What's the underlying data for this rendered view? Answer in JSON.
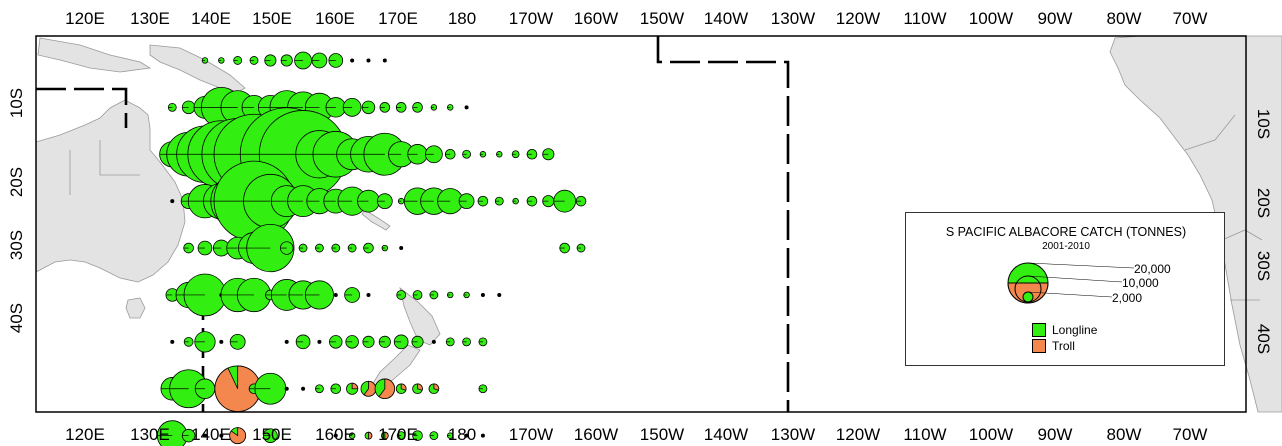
{
  "top_lon_labels": [
    "120E",
    "130E",
    "140E",
    "150E",
    "160E",
    "170E",
    "180",
    "170W",
    "160W",
    "150W",
    "140W",
    "130W",
    "120W",
    "110W",
    "100W",
    "90W",
    "80W",
    "70W"
  ],
  "bottom_lon_labels": [
    "120E",
    "130E",
    "140E",
    "150E",
    "160E",
    "170E",
    "180",
    "170W",
    "160W",
    "150W",
    "140W",
    "130W",
    "120W",
    "110W",
    "100W",
    "90W",
    "80W",
    "70W"
  ],
  "left_lat_labels": [
    "10S",
    "20S",
    "30S",
    "40S"
  ],
  "right_lat_labels": [
    "10S",
    "20S",
    "30S",
    "40S"
  ],
  "legend": {
    "title": "S PACIFIC ALBACORE CATCH (TONNES)",
    "subtitle": "2001-2010",
    "amounts": [
      "20,000",
      "10,000",
      "2,000"
    ],
    "series": [
      {
        "label": "Longline",
        "color": "#33ee11"
      },
      {
        "label": "Troll",
        "color": "#f4874e"
      }
    ]
  },
  "colors": {
    "longline": "#33ee11",
    "troll": "#f4874e",
    "land": "#e3e3e3"
  },
  "catch_cells": [
    {
      "lat": -2.5,
      "lon": 162.5,
      "t": 100
    },
    {
      "lat": -2.5,
      "lon": 167.5,
      "t": 100
    },
    {
      "lat": -2.5,
      "lon": 172.5,
      "t": 200
    },
    {
      "lat": -2.5,
      "lon": 177.5,
      "t": 200
    },
    {
      "lat": -2.5,
      "lon": 182.5,
      "t": 400
    },
    {
      "lat": -2.5,
      "lon": 187.5,
      "t": 400
    },
    {
      "lat": -2.5,
      "lon": 192.5,
      "t": 900
    },
    {
      "lat": -2.5,
      "lon": 197.5,
      "t": 700
    },
    {
      "lat": -2.5,
      "lon": 202.5,
      "t": 600
    },
    {
      "lat": -2.5,
      "lon": 207.5,
      "t": 50
    },
    {
      "lat": -2.5,
      "lon": 212.5,
      "t": 50
    },
    {
      "lat": -2.5,
      "lon": 217.5,
      "t": 50
    },
    {
      "lat": -7.5,
      "lon": 152.5,
      "t": 200
    },
    {
      "lat": -7.5,
      "lon": 157.5,
      "t": 500
    },
    {
      "lat": -7.5,
      "lon": 162.5,
      "t": 1500
    },
    {
      "lat": -7.5,
      "lon": 167.5,
      "t": 5000
    },
    {
      "lat": -7.5,
      "lon": 172.5,
      "t": 3500
    },
    {
      "lat": -7.5,
      "lon": 177.5,
      "t": 1800
    },
    {
      "lat": -7.5,
      "lon": 182.5,
      "t": 1800
    },
    {
      "lat": -7.5,
      "lon": 187.5,
      "t": 3500
    },
    {
      "lat": -7.5,
      "lon": 192.5,
      "t": 3000
    },
    {
      "lat": -7.5,
      "lon": 197.5,
      "t": 2500
    },
    {
      "lat": -7.5,
      "lon": 202.5,
      "t": 1200
    },
    {
      "lat": -7.5,
      "lon": 207.5,
      "t": 1000
    },
    {
      "lat": -7.5,
      "lon": 212.5,
      "t": 500
    },
    {
      "lat": -7.5,
      "lon": 217.5,
      "t": 300
    },
    {
      "lat": -7.5,
      "lon": 222.5,
      "t": 300
    },
    {
      "lat": -7.5,
      "lon": 227.5,
      "t": 300
    },
    {
      "lat": -7.5,
      "lon": 232.5,
      "t": 100
    },
    {
      "lat": -7.5,
      "lon": 237.5,
      "t": 100
    },
    {
      "lat": -7.5,
      "lon": 242.5,
      "t": 50
    },
    {
      "lat": -12.5,
      "lon": 152.5,
      "t": 2000
    },
    {
      "lat": -12.5,
      "lon": 157.5,
      "t": 6000
    },
    {
      "lat": -12.5,
      "lon": 162.5,
      "t": 10000
    },
    {
      "lat": -12.5,
      "lon": 167.5,
      "t": 14000
    },
    {
      "lat": -12.5,
      "lon": 172.5,
      "t": 16000
    },
    {
      "lat": -12.5,
      "lon": 177.5,
      "t": 20000
    },
    {
      "lat": -12.5,
      "lon": 182.5,
      "t": 8000
    },
    {
      "lat": -12.5,
      "lon": 187.5,
      "t": 27000
    },
    {
      "lat": -12.5,
      "lon": 192.5,
      "t": 24000
    },
    {
      "lat": -12.5,
      "lon": 197.5,
      "t": 7000
    },
    {
      "lat": -12.5,
      "lon": 202.5,
      "t": 6500
    },
    {
      "lat": -12.5,
      "lon": 207.5,
      "t": 3000
    },
    {
      "lat": -12.5,
      "lon": 212.5,
      "t": 4000
    },
    {
      "lat": -12.5,
      "lon": 217.5,
      "t": 5500
    },
    {
      "lat": -12.5,
      "lon": 222.5,
      "t": 2000
    },
    {
      "lat": -12.5,
      "lon": 227.5,
      "t": 1200
    },
    {
      "lat": -12.5,
      "lon": 232.5,
      "t": 900
    },
    {
      "lat": -12.5,
      "lon": 237.5,
      "t": 300
    },
    {
      "lat": -12.5,
      "lon": 242.5,
      "t": 200
    },
    {
      "lat": -12.5,
      "lon": 247.5,
      "t": 100
    },
    {
      "lat": -12.5,
      "lon": 252.5,
      "t": 100
    },
    {
      "lat": -12.5,
      "lon": 257.5,
      "t": 150
    },
    {
      "lat": -12.5,
      "lon": 262.5,
      "t": 300
    },
    {
      "lat": -12.5,
      "lon": 267.5,
      "t": 400
    },
    {
      "lat": -17.5,
      "lon": 152.5,
      "t": 50
    },
    {
      "lat": -17.5,
      "lon": 157.5,
      "t": 700
    },
    {
      "lat": -17.5,
      "lon": 162.5,
      "t": 3500
    },
    {
      "lat": -17.5,
      "lon": 167.5,
      "t": 4000
    },
    {
      "lat": -17.5,
      "lon": 172.5,
      "t": 9000
    },
    {
      "lat": -17.5,
      "lon": 177.5,
      "t": 20000
    },
    {
      "lat": -17.5,
      "lon": 182.5,
      "t": 9000
    },
    {
      "lat": -17.5,
      "lon": 187.5,
      "t": 3000
    },
    {
      "lat": -17.5,
      "lon": 192.5,
      "t": 3000
    },
    {
      "lat": -17.5,
      "lon": 197.5,
      "t": 2000
    },
    {
      "lat": -17.5,
      "lon": 202.5,
      "t": 1800
    },
    {
      "lat": -17.5,
      "lon": 207.5,
      "t": 2500
    },
    {
      "lat": -17.5,
      "lon": 212.5,
      "t": 1500
    },
    {
      "lat": -17.5,
      "lon": 217.5,
      "t": 700
    },
    {
      "lat": -17.5,
      "lon": 222.5,
      "t": 100
    },
    {
      "lat": -17.5,
      "lon": 227.5,
      "t": 2200
    },
    {
      "lat": -17.5,
      "lon": 232.5,
      "t": 2200
    },
    {
      "lat": -17.5,
      "lon": 237.5,
      "t": 2000
    },
    {
      "lat": -17.5,
      "lon": 242.5,
      "t": 700
    },
    {
      "lat": -17.5,
      "lon": 247.5,
      "t": 300
    },
    {
      "lat": -17.5,
      "lon": 252.5,
      "t": 200
    },
    {
      "lat": -17.5,
      "lon": 257.5,
      "t": 100
    },
    {
      "lat": -17.5,
      "lon": 262.5,
      "t": 300
    },
    {
      "lat": -17.5,
      "lon": 267.5,
      "t": 400
    },
    {
      "lat": -17.5,
      "lon": 272.5,
      "t": 1500
    },
    {
      "lat": -17.5,
      "lon": 277.5,
      "t": 300
    },
    {
      "lat": -22.5,
      "lon": 157.5,
      "t": 300
    },
    {
      "lat": -22.5,
      "lon": 162.5,
      "t": 600
    },
    {
      "lat": -22.5,
      "lon": 167.5,
      "t": 800
    },
    {
      "lat": -22.5,
      "lon": 172.5,
      "t": 1500
    },
    {
      "lat": -22.5,
      "lon": 177.5,
      "t": 3000
    },
    {
      "lat": -22.5,
      "lon": 182.5,
      "t": 7000
    },
    {
      "lat": -22.5,
      "lon": 187.5,
      "t": 500
    },
    {
      "lat": -22.5,
      "lon": 192.5,
      "t": 200
    },
    {
      "lat": -22.5,
      "lon": 197.5,
      "t": 200
    },
    {
      "lat": -22.5,
      "lon": 202.5,
      "t": 200
    },
    {
      "lat": -22.5,
      "lon": 207.5,
      "t": 200
    },
    {
      "lat": -22.5,
      "lon": 212.5,
      "t": 300
    },
    {
      "lat": -22.5,
      "lon": 217.5,
      "t": 100
    },
    {
      "lat": -22.5,
      "lon": 222.5,
      "t": 50
    },
    {
      "lat": -22.5,
      "lon": 272.5,
      "t": 300
    },
    {
      "lat": -22.5,
      "lon": 277.5,
      "t": 200
    },
    {
      "lat": -27.5,
      "lon": 152.5,
      "t": 500
    },
    {
      "lat": -27.5,
      "lon": 157.5,
      "t": 2000
    },
    {
      "lat": -27.5,
      "lon": 162.5,
      "t": 5500
    },
    {
      "lat": -27.5,
      "lon": 167.5,
      "t": 50
    },
    {
      "lat": -27.5,
      "lon": 172.5,
      "t": 3500
    },
    {
      "lat": -27.5,
      "lon": 177.5,
      "t": 3500
    },
    {
      "lat": -27.5,
      "lon": 182.5,
      "t": 300
    },
    {
      "lat": -27.5,
      "lon": 187.5,
      "t": 3000
    },
    {
      "lat": -27.5,
      "lon": 192.5,
      "t": 2500
    },
    {
      "lat": -27.5,
      "lon": 197.5,
      "t": 2500
    },
    {
      "lat": -27.5,
      "lon": 202.5,
      "t": 50
    },
    {
      "lat": -27.5,
      "lon": 207.5,
      "t": 700
    },
    {
      "lat": -27.5,
      "lon": 212.5,
      "t": 50
    },
    {
      "lat": -27.5,
      "lon": 222.5,
      "t": 250
    },
    {
      "lat": -27.5,
      "lon": 227.5,
      "t": 250
    },
    {
      "lat": -27.5,
      "lon": 232.5,
      "t": 200
    },
    {
      "lat": -27.5,
      "lon": 237.5,
      "t": 100
    },
    {
      "lat": -27.5,
      "lon": 242.5,
      "t": 100
    },
    {
      "lat": -27.5,
      "lon": 247.5,
      "t": 50
    },
    {
      "lat": -27.5,
      "lon": 252.5,
      "t": 50
    },
    {
      "lat": -32.5,
      "lon": 152.5,
      "t": 50
    },
    {
      "lat": -32.5,
      "lon": 157.5,
      "t": 250
    },
    {
      "lat": -32.5,
      "lon": 162.5,
      "t": 1300
    },
    {
      "lat": -32.5,
      "lon": 167.5,
      "t": 50
    },
    {
      "lat": -32.5,
      "lon": 172.5,
      "t": 700
    },
    {
      "lat": -32.5,
      "lon": 187.5,
      "t": 50
    },
    {
      "lat": -32.5,
      "lon": 192.5,
      "t": 600
    },
    {
      "lat": -32.5,
      "lon": 197.5,
      "t": 50
    },
    {
      "lat": -32.5,
      "lon": 202.5,
      "t": 500
    },
    {
      "lat": -32.5,
      "lon": 207.5,
      "t": 500
    },
    {
      "lat": -32.5,
      "lon": 212.5,
      "t": 400
    },
    {
      "lat": -32.5,
      "lon": 217.5,
      "t": 400
    },
    {
      "lat": -32.5,
      "lon": 222.5,
      "t": 600
    },
    {
      "lat": -32.5,
      "lon": 227.5,
      "t": 400
    },
    {
      "lat": -32.5,
      "lon": 232.5,
      "t": 50
    },
    {
      "lat": -32.5,
      "lon": 237.5,
      "t": 200
    },
    {
      "lat": -32.5,
      "lon": 242.5,
      "t": 200
    },
    {
      "lat": -32.5,
      "lon": 247.5,
      "t": 200
    },
    {
      "lat": -37.5,
      "lon": 152.5,
      "t": 1600
    },
    {
      "lat": -37.5,
      "lon": 157.5,
      "t": 4500
    },
    {
      "lat": -37.5,
      "lon": 162.5,
      "t": 1200
    },
    {
      "lat": -37.5,
      "lon": 167.5,
      "t": 200
    },
    {
      "lat": -37.5,
      "lon": 172.5,
      "t": 6500,
      "troll": 0.93
    },
    {
      "lat": -37.5,
      "lon": 177.5,
      "t": 300
    },
    {
      "lat": -37.5,
      "lon": 182.5,
      "t": 3000
    },
    {
      "lat": -37.5,
      "lon": 187.5,
      "t": 50
    },
    {
      "lat": -37.5,
      "lon": 192.5,
      "t": 50
    },
    {
      "lat": -37.5,
      "lon": 197.5,
      "t": 200
    },
    {
      "lat": -37.5,
      "lon": 202.5,
      "t": 300
    },
    {
      "lat": -37.5,
      "lon": 207.5,
      "t": 400,
      "troll": 0.25
    },
    {
      "lat": -37.5,
      "lon": 212.5,
      "t": 700,
      "troll": 0.6
    },
    {
      "lat": -37.5,
      "lon": 217.5,
      "t": 1200,
      "troll": 0.6
    },
    {
      "lat": -37.5,
      "lon": 222.5,
      "t": 300,
      "troll": 0.3
    },
    {
      "lat": -37.5,
      "lon": 227.5,
      "t": 300,
      "troll": 0.3
    },
    {
      "lat": -37.5,
      "lon": 232.5,
      "t": 300,
      "troll": 0.3
    },
    {
      "lat": -37.5,
      "lon": 247.5,
      "t": 200
    },
    {
      "lat": -42.5,
      "lon": 152.5,
      "t": 2800
    },
    {
      "lat": -42.5,
      "lon": 157.5,
      "t": 500
    },
    {
      "lat": -42.5,
      "lon": 162.5,
      "t": 50
    },
    {
      "lat": -42.5,
      "lon": 167.5,
      "t": 50
    },
    {
      "lat": -42.5,
      "lon": 172.5,
      "t": 800,
      "troll": 0.85
    },
    {
      "lat": -42.5,
      "lon": 182.5,
      "t": 600
    },
    {
      "lat": -42.5,
      "lon": 202.5,
      "t": 50
    },
    {
      "lat": -42.5,
      "lon": 207.5,
      "t": 100
    },
    {
      "lat": -42.5,
      "lon": 212.5,
      "t": 150,
      "troll": 0.5
    },
    {
      "lat": -42.5,
      "lon": 217.5,
      "t": 150,
      "troll": 0.5
    },
    {
      "lat": -42.5,
      "lon": 222.5,
      "t": 200
    },
    {
      "lat": -42.5,
      "lon": 227.5,
      "t": 300
    },
    {
      "lat": -42.5,
      "lon": 232.5,
      "t": 200
    },
    {
      "lat": -42.5,
      "lon": 237.5,
      "t": 100
    },
    {
      "lat": -42.5,
      "lon": 242.5,
      "t": 50
    },
    {
      "lat": -42.5,
      "lon": 247.5,
      "t": 50
    }
  ]
}
